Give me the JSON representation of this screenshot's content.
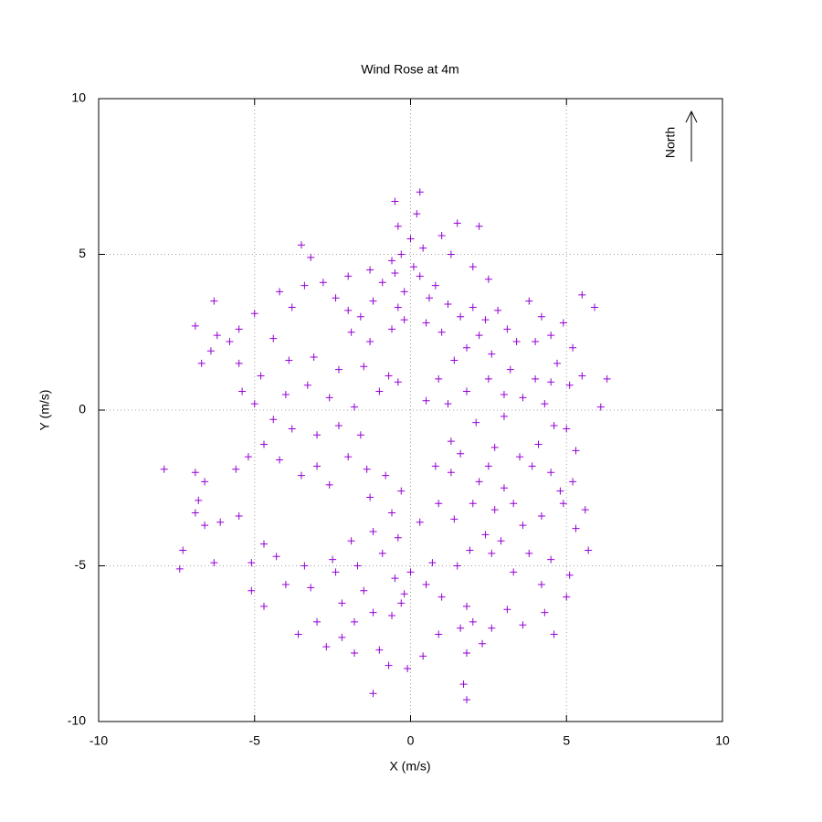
{
  "chart_data": {
    "type": "scatter",
    "title": "Wind Rose at 4m",
    "xlabel": "X (m/s)",
    "ylabel": "Y (m/s)",
    "annotation": "North",
    "color": "#9400d3",
    "grid": true,
    "xlim": [
      -10,
      10
    ],
    "ylim": [
      -10,
      10
    ],
    "xticks": [
      -10,
      -5,
      0,
      5,
      10
    ],
    "yticks": [
      -10,
      -5,
      0,
      5,
      10
    ],
    "x": [
      -0.5,
      0.3,
      0.2,
      -0.4,
      0,
      0.4,
      -0.3,
      0.1,
      -0.5,
      0.3,
      0.8,
      -0.2,
      0.6,
      -0.4,
      1.0,
      1.5,
      2.2,
      1.3,
      2.0,
      2.5,
      1.2,
      1.6,
      2.0,
      2.4,
      2.8,
      3.1,
      2.2,
      1.8,
      2.6,
      3.4,
      3.8,
      4.2,
      4.5,
      4.9,
      5.5,
      5.9,
      5.2,
      4.7,
      5.5,
      6.3,
      6.1,
      5.1,
      4.0,
      3.6,
      4.3,
      3.2,
      2.5,
      1.8,
      1.2,
      2.1,
      3.0,
      4.6,
      5.3,
      4.1,
      3.5,
      2.7,
      1.6,
      1.3,
      2.2,
      3.0,
      4.5,
      5.2,
      5.6,
      5.3,
      4.9,
      4.2,
      3.6,
      2.7,
      2.0,
      1.4,
      2.4,
      2.9,
      2.6,
      1.9,
      3.8,
      4.5,
      5.7,
      5.1,
      4.2,
      3.3,
      1.5,
      0.7,
      0.0,
      -0.5,
      -0.2,
      0.5,
      1.0,
      1.8,
      2.0,
      1.6,
      2.3,
      1.8,
      1.7,
      1.8,
      2.6,
      3.1,
      3.6,
      4.3,
      4.6,
      5.0,
      -1.2,
      -0.7,
      -0.1,
      0.4,
      0.9,
      -1.0,
      -1.8,
      -2.7,
      -2.2,
      -1.8,
      -1.2,
      -0.6,
      -0.3,
      -1.5,
      -2.2,
      -3.0,
      -3.6,
      -3.2,
      -2.4,
      -1.7,
      -0.9,
      -0.4,
      -1.2,
      -0.6,
      0.3,
      0.9,
      -0.3,
      -1.3,
      -1.9,
      -2.5,
      -3.4,
      -4.0,
      -4.3,
      -4.7,
      -5.1,
      -4.7,
      -5.1,
      -6.3,
      -7.4,
      -7.3,
      -6.9,
      -6.6,
      -6.1,
      -5.5,
      -6.8,
      -6.6,
      -6.9,
      -7.9,
      -5.6,
      -5.2,
      -4.7,
      -4.2,
      -3.5,
      -3.0,
      -2.6,
      -2.0,
      -1.4,
      -0.8,
      -1.6,
      -2.3,
      -3.0,
      -3.8,
      -4.4,
      -5.0,
      -5.4,
      -4.8,
      -4.0,
      -3.3,
      -2.6,
      -1.8,
      -1.0,
      -0.7,
      -1.5,
      -2.3,
      -3.1,
      -3.9,
      -4.4,
      -5.5,
      -5.8,
      -6.2,
      -6.4,
      -6.7,
      -6.9,
      -6.3,
      -5.5,
      -5.0,
      -4.2,
      -3.8,
      -3.4,
      -3.5,
      -3.2,
      -2.8,
      -2.4,
      -2.0,
      -1.6,
      -1.2,
      -0.9,
      -0.6,
      -1.3,
      -2.0,
      -1.9,
      -1.3,
      -0.6,
      -0.2,
      0.5,
      1.0,
      1.4,
      0.9,
      0.5,
      -0.4,
      1.3,
      0.8,
      2.5,
      3.3,
      4.8,
      3.9,
      5.0,
      4.5,
      3.0,
      4.0
    ],
    "values": [
      6.7,
      7.0,
      6.3,
      5.9,
      5.5,
      5.2,
      5.0,
      4.6,
      4.4,
      4.3,
      4.0,
      3.8,
      3.6,
      3.3,
      5.6,
      6.0,
      5.9,
      5.0,
      4.6,
      4.2,
      3.4,
      3.0,
      3.3,
      2.9,
      3.2,
      2.6,
      2.4,
      2.0,
      1.8,
      2.2,
      3.5,
      3.0,
      2.4,
      2.8,
      3.7,
      3.3,
      2.0,
      1.5,
      1.1,
      1.0,
      0.1,
      0.8,
      1.0,
      0.4,
      0.2,
      1.3,
      1.0,
      0.6,
      0.2,
      -0.4,
      -0.2,
      -0.5,
      -1.3,
      -1.1,
      -1.5,
      -1.2,
      -1.4,
      -2.0,
      -2.3,
      -2.5,
      -2.0,
      -2.3,
      -3.2,
      -3.8,
      -3.0,
      -3.4,
      -3.7,
      -3.2,
      -3.0,
      -3.5,
      -4.0,
      -4.2,
      -4.6,
      -4.5,
      -4.6,
      -4.8,
      -4.5,
      -5.3,
      -5.6,
      -5.2,
      -5.0,
      -4.9,
      -5.2,
      -5.4,
      -5.9,
      -5.6,
      -6.0,
      -6.3,
      -6.8,
      -7.0,
      -7.5,
      -7.8,
      -8.8,
      -9.3,
      -7.0,
      -6.4,
      -6.9,
      -6.5,
      -7.2,
      -6.0,
      -9.1,
      -8.2,
      -8.3,
      -7.9,
      -7.2,
      -7.7,
      -7.8,
      -7.6,
      -7.3,
      -6.8,
      -6.5,
      -6.6,
      -6.2,
      -5.8,
      -6.2,
      -6.8,
      -7.2,
      -5.7,
      -5.2,
      -5.0,
      -4.6,
      -4.1,
      -3.9,
      -3.3,
      -3.6,
      -3.0,
      -2.6,
      -2.8,
      -4.2,
      -4.8,
      -5.0,
      -5.6,
      -4.7,
      -4.3,
      -4.9,
      -6.3,
      -5.8,
      -4.9,
      -5.1,
      -4.5,
      -3.3,
      -3.7,
      -3.6,
      -3.4,
      -2.9,
      -2.3,
      -2.0,
      -1.9,
      -1.9,
      -1.5,
      -1.1,
      -1.6,
      -2.1,
      -1.8,
      -2.4,
      -1.5,
      -1.9,
      -2.1,
      -0.8,
      -0.5,
      -0.8,
      -0.6,
      -0.3,
      0.2,
      0.6,
      1.1,
      0.5,
      0.8,
      0.4,
      0.1,
      0.6,
      1.1,
      1.4,
      1.3,
      1.7,
      1.6,
      2.3,
      1.5,
      2.2,
      2.4,
      1.9,
      1.5,
      2.7,
      3.5,
      2.6,
      3.1,
      3.8,
      3.3,
      4.0,
      5.3,
      4.9,
      4.1,
      3.6,
      3.2,
      3.0,
      3.5,
      4.1,
      4.8,
      4.5,
      4.3,
      2.5,
      2.2,
      2.6,
      2.9,
      2.8,
      2.5,
      1.6,
      1.0,
      0.3,
      0.9,
      -1.0,
      -1.8,
      -1.8,
      -3.0,
      -2.6,
      -1.8,
      -0.6,
      0.9,
      0.5,
      2.2
    ]
  }
}
